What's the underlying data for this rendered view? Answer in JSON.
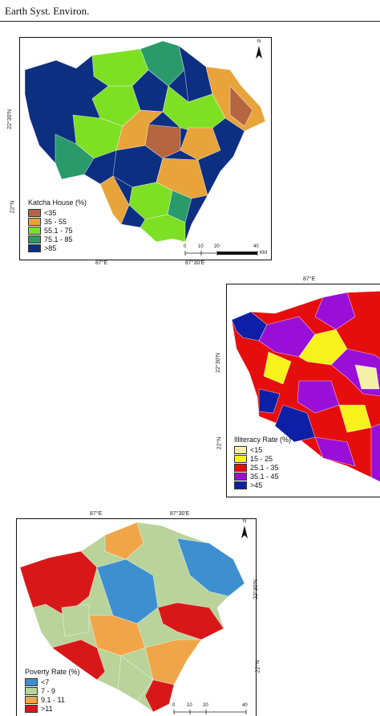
{
  "header": {
    "journal": "Earth Syst. Environ."
  },
  "maps": [
    {
      "id": "katcha",
      "legend_title": "Katcha House (%)",
      "classes": [
        {
          "label": "<35",
          "color": "#b5653f"
        },
        {
          "label": "35 - 55",
          "color": "#e8a43a"
        },
        {
          "label": "55.1 - 75",
          "color": "#7ee022"
        },
        {
          "label": "75.1 - 85",
          "color": "#2a9a6a"
        },
        {
          "label": ">85",
          "color": "#0d2f82"
        }
      ],
      "lat_labels": [
        "22°30'N",
        "22°N"
      ],
      "lon_labels": [
        "87°E",
        "87°30'E"
      ],
      "north": "N",
      "scale": {
        "ticks": [
          "0",
          "10",
          "20",
          "40"
        ],
        "unit": "KM"
      }
    },
    {
      "id": "illiteracy",
      "legend_title": "Illiteracy Rate (%)",
      "classes": [
        {
          "label": "<15",
          "color": "#f4f0a8"
        },
        {
          "label": "15 - 25",
          "color": "#f7f21c"
        },
        {
          "label": "25.1 - 35",
          "color": "#e60d0d"
        },
        {
          "label": "35.1 - 45",
          "color": "#9a0fd8"
        },
        {
          "label": ">45",
          "color": "#0c1fa6"
        }
      ],
      "lat_labels": [
        "22°30'N",
        "22°N"
      ],
      "lon_labels": [
        "87°E"
      ]
    },
    {
      "id": "poverty",
      "legend_title": "Poverty Rate (%)",
      "classes": [
        {
          "label": "<7",
          "color": "#3d8fcf"
        },
        {
          "label": "7 - 9",
          "color": "#b9d39a"
        },
        {
          "label": "9.1 - 11",
          "color": "#f0a648"
        },
        {
          "label": ">11",
          "color": "#d81818"
        }
      ],
      "lat_labels": [
        "22°30'N",
        "22°N"
      ],
      "lon_labels": [
        "87°E",
        "87°30'E"
      ],
      "north": "N",
      "scale": {
        "ticks": [
          "0",
          "10",
          "20",
          "40"
        ],
        "unit": ""
      }
    }
  ]
}
